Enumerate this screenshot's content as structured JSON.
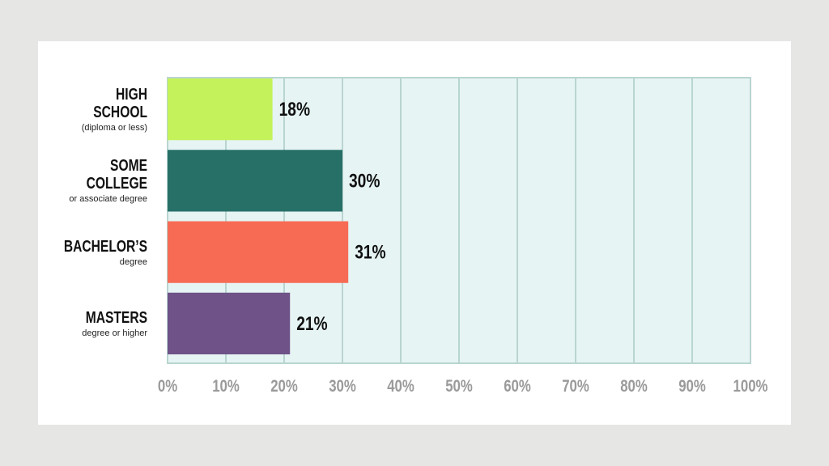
{
  "chart_data": {
    "type": "bar",
    "orientation": "horizontal",
    "categories": [
      "HIGH SCHOOL",
      "SOME COLLEGE",
      "BACHELOR’S",
      "MASTERS"
    ],
    "subcategories": [
      "(diploma or less)",
      "or associate degree",
      "degree",
      "degree or higher"
    ],
    "values": [
      18,
      30,
      31,
      21
    ],
    "value_labels": [
      "18%",
      "30%",
      "31%",
      "21%"
    ],
    "colors": [
      "#c4f25a",
      "#277068",
      "#f76b55",
      "#6e5288"
    ],
    "xlim": [
      0,
      100
    ],
    "xticks": [
      {
        "value": 0,
        "label": "0%"
      },
      {
        "value": 10,
        "label": "10%"
      },
      {
        "value": 20,
        "label": "20%"
      },
      {
        "value": 30,
        "label": "30%"
      },
      {
        "value": 40,
        "label": "40%"
      },
      {
        "value": 50,
        "label": "50%"
      },
      {
        "value": 60,
        "label": "60%"
      },
      {
        "value": 70,
        "label": "70%"
      },
      {
        "value": 80,
        "label": "80%"
      },
      {
        "value": 90,
        "label": "90%"
      },
      {
        "value": 100,
        "label": "100%"
      }
    ],
    "grid": true
  }
}
